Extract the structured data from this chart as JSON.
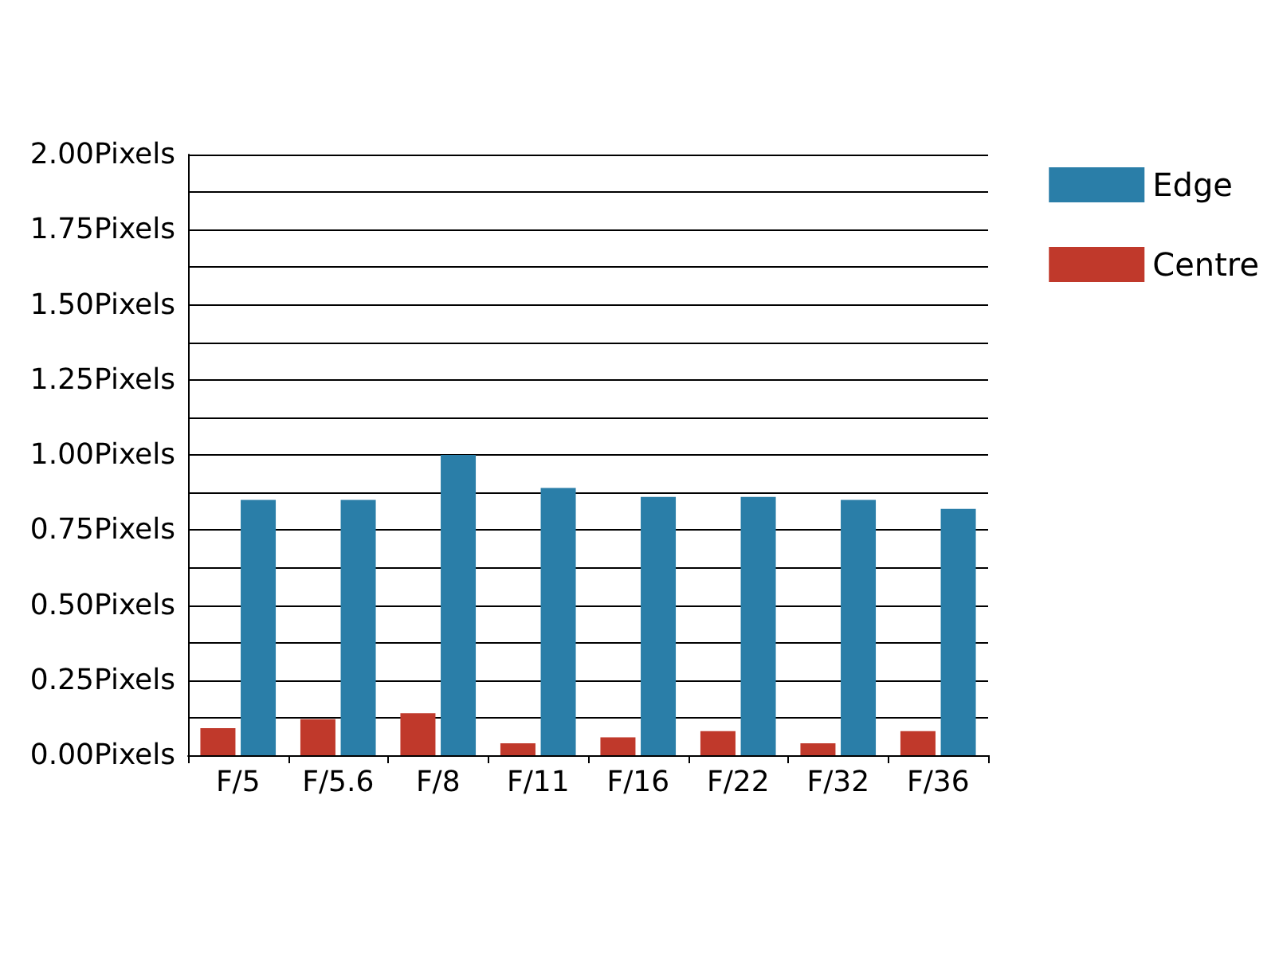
{
  "chart_data": {
    "type": "bar",
    "categories": [
      "F/5",
      "F/5.6",
      "F/8",
      "F/11",
      "F/16",
      "F/22",
      "F/32",
      "F/36"
    ],
    "series": [
      {
        "name": "Edge",
        "color": "#2a7ea8",
        "values": [
          0.85,
          0.85,
          1.0,
          0.89,
          0.86,
          0.86,
          0.85,
          0.82
        ]
      },
      {
        "name": "Centre",
        "color": "#c0392b",
        "values": [
          0.09,
          0.12,
          0.14,
          0.04,
          0.06,
          0.08,
          0.04,
          0.08
        ]
      }
    ],
    "ylim": [
      0,
      2
    ],
    "yticks": [
      {
        "value": 0,
        "label": "0.00Pixels"
      },
      {
        "value": 0.125,
        "label": null
      },
      {
        "value": 0.25,
        "label": "0.25Pixels"
      },
      {
        "value": 0.375,
        "label": null
      },
      {
        "value": 0.5,
        "label": "0.50Pixels"
      },
      {
        "value": 0.625,
        "label": null
      },
      {
        "value": 0.75,
        "label": "0.75Pixels"
      },
      {
        "value": 0.875,
        "label": null
      },
      {
        "value": 1,
        "label": "1.00Pixels"
      },
      {
        "value": 1.125,
        "label": null
      },
      {
        "value": 1.25,
        "label": "1.25Pixels"
      },
      {
        "value": 1.375,
        "label": null
      },
      {
        "value": 1.5,
        "label": "1.50Pixels"
      },
      {
        "value": 1.625,
        "label": null
      },
      {
        "value": 1.75,
        "label": "1.75Pixels"
      },
      {
        "value": 1.875,
        "label": null
      },
      {
        "value": 2,
        "label": "2.00Pixels"
      }
    ],
    "grid": "y",
    "legend": "top right"
  }
}
